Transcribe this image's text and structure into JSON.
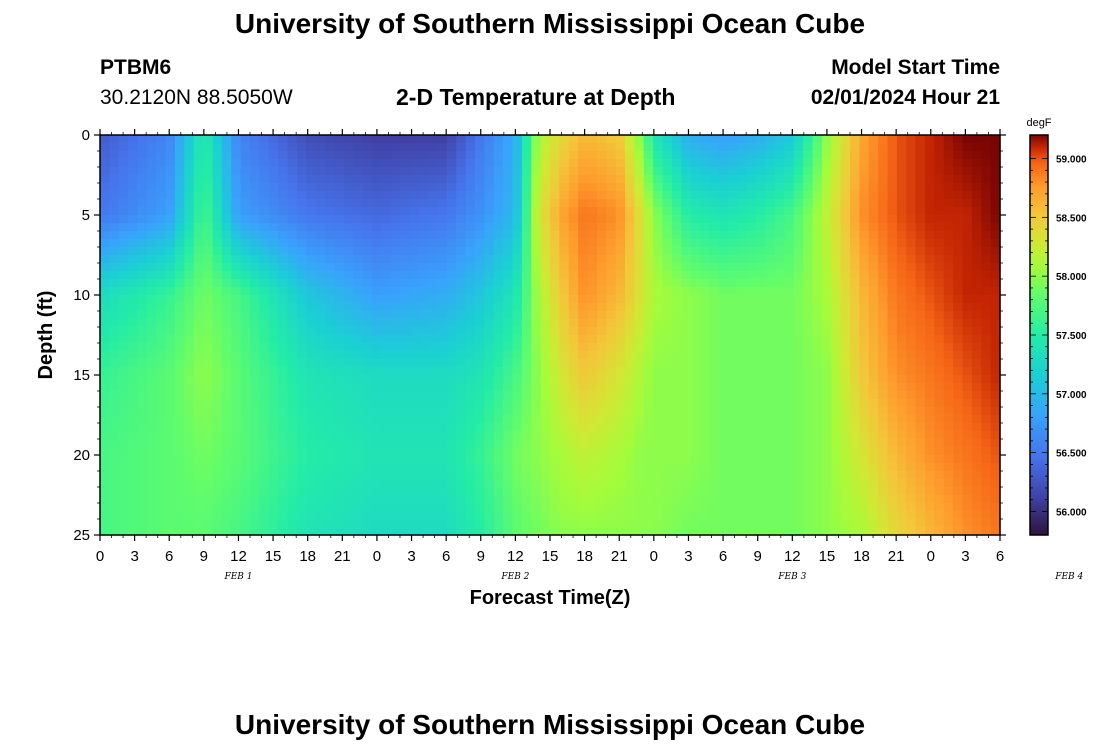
{
  "header": {
    "title": "University of Southern Mississippi Ocean Cube",
    "station": "PTBM6",
    "coords": "30.2120N  88.5050W",
    "plot_title": "2-D Temperature at Depth",
    "model_label": "Model Start Time",
    "model_time": "02/01/2024 Hour 21"
  },
  "footer": {
    "title": "University of Southern Mississippi Ocean Cube"
  },
  "chart_data": {
    "type": "heatmap",
    "title": "2-D Temperature at Depth",
    "xlabel": "Forecast Time(Z)",
    "ylabel": "Depth (ft)",
    "x_ticks": [
      "0",
      "3",
      "6",
      "9",
      "12",
      "15",
      "18",
      "21",
      "0",
      "3",
      "6",
      "9",
      "12",
      "15",
      "18",
      "21",
      "0",
      "3",
      "6",
      "9",
      "12",
      "15",
      "18",
      "21",
      "0",
      "3",
      "6"
    ],
    "day_labels": [
      "FEB 1",
      "FEB 2",
      "FEB 3",
      "FEB 4"
    ],
    "x_range_hours": [
      0,
      78
    ],
    "y_ticks": [
      "0",
      "5",
      "10",
      "15",
      "20",
      "25"
    ],
    "ylim": [
      0,
      25
    ],
    "y_inverted": true,
    "colorbar": {
      "unit": "degF",
      "tick_labels": [
        "56.000",
        "56.500",
        "57.000",
        "57.500",
        "58.000",
        "58.500",
        "59.000"
      ],
      "range": [
        55.8,
        59.2
      ]
    },
    "time_hours": [
      0,
      6,
      9,
      12,
      18,
      24,
      30,
      33,
      36,
      38,
      40,
      42,
      45,
      47,
      48,
      51,
      54,
      57,
      60,
      63,
      66,
      69,
      72,
      75,
      78
    ],
    "depths_ft": [
      0,
      5,
      10,
      15,
      20,
      25
    ],
    "values_degF": [
      [
        56.3,
        56.6,
        57.5,
        56.6,
        56.2,
        56.1,
        56.1,
        56.5,
        56.9,
        58.1,
        58.4,
        58.6,
        58.5,
        57.9,
        57.4,
        56.9,
        56.8,
        56.9,
        57.1,
        58.0,
        58.7,
        59.0,
        59.1,
        59.2,
        59.2
      ],
      [
        56.5,
        56.8,
        57.7,
        56.8,
        56.5,
        56.4,
        56.5,
        56.7,
        57.0,
        58.3,
        58.7,
        58.9,
        58.8,
        58.3,
        58.0,
        57.5,
        57.4,
        57.5,
        57.7,
        58.2,
        58.8,
        59.0,
        59.1,
        59.1,
        59.2
      ],
      [
        57.3,
        57.6,
        57.9,
        57.7,
        57.1,
        56.8,
        56.9,
        57.1,
        57.4,
        58.1,
        58.5,
        58.8,
        58.6,
        58.3,
        58.1,
        58.0,
        57.9,
        57.9,
        57.9,
        58.1,
        58.6,
        58.9,
        59.0,
        59.1,
        59.1
      ],
      [
        57.6,
        57.8,
        58.0,
        57.8,
        57.4,
        57.3,
        57.3,
        57.4,
        57.7,
        58.0,
        58.3,
        58.5,
        58.3,
        58.1,
        58.0,
        58.0,
        57.9,
        57.9,
        57.9,
        58.0,
        58.5,
        58.8,
        58.9,
        59.0,
        59.1
      ],
      [
        57.7,
        57.8,
        57.9,
        57.8,
        57.5,
        57.4,
        57.4,
        57.6,
        57.9,
        58.0,
        58.1,
        58.2,
        58.1,
        58.0,
        58.0,
        58.0,
        57.9,
        57.9,
        57.9,
        58.0,
        58.3,
        58.6,
        58.8,
        58.9,
        59.0
      ],
      [
        57.7,
        57.8,
        57.8,
        57.7,
        57.4,
        57.3,
        57.3,
        57.5,
        57.8,
        57.9,
        58.0,
        58.0,
        58.0,
        58.0,
        58.0,
        57.9,
        57.9,
        57.9,
        57.9,
        58.0,
        58.1,
        58.4,
        58.6,
        58.8,
        58.9
      ]
    ]
  }
}
